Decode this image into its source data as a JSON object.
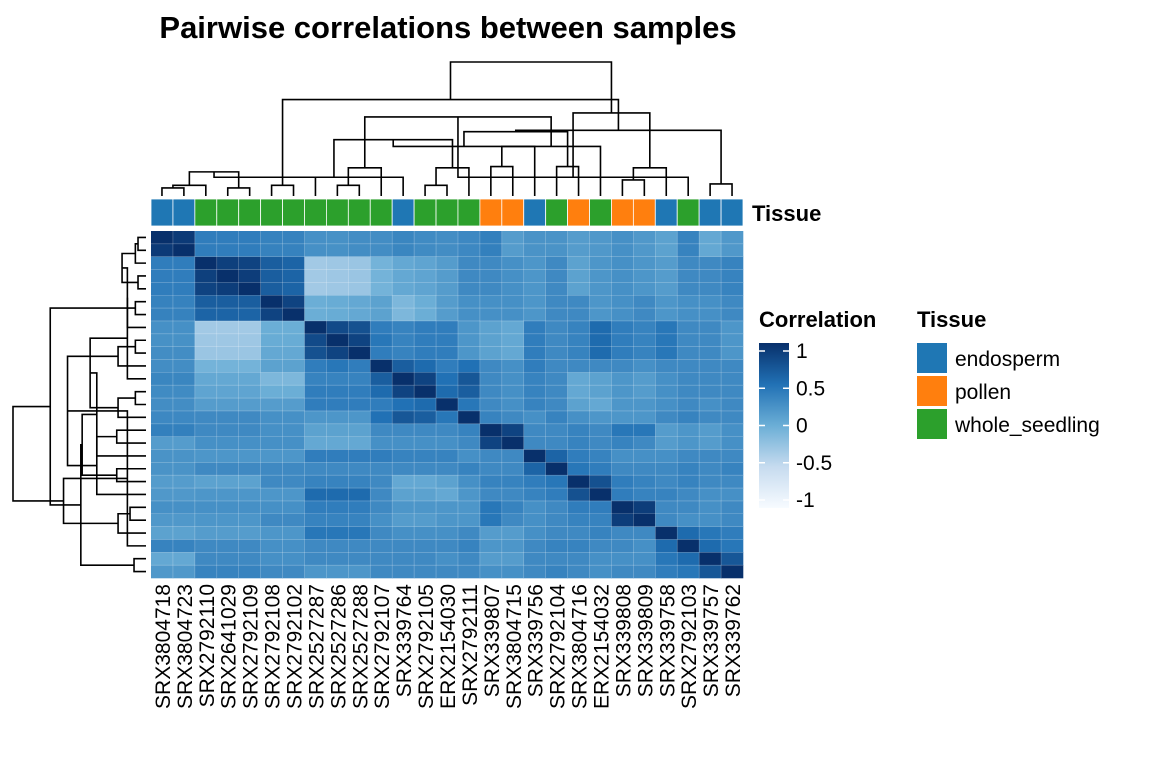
{
  "chart_data": {
    "type": "heatmap",
    "title": "Pairwise correlations between samples",
    "samples": [
      "SRX3804718",
      "SRX3804723",
      "SRX2792110",
      "SRX2641029",
      "SRX2792109",
      "SRX2792108",
      "SRX2792102",
      "SRX2527287",
      "SRX2527286",
      "SRX2527288",
      "SRX2792107",
      "SRX339764",
      "SRX2792105",
      "ERX2154030",
      "SRX2792111",
      "SRX339807",
      "SRX3804715",
      "SRX339756",
      "SRX2792104",
      "SRX3804716",
      "ERX2154032",
      "SRX339808",
      "SRX339809",
      "SRX339758",
      "SRX2792103",
      "SRX339757",
      "SRX339762"
    ],
    "tissue": [
      "endosperm",
      "endosperm",
      "whole_seedling",
      "whole_seedling",
      "whole_seedling",
      "whole_seedling",
      "whole_seedling",
      "whole_seedling",
      "whole_seedling",
      "whole_seedling",
      "whole_seedling",
      "endosperm",
      "whole_seedling",
      "whole_seedling",
      "whole_seedling",
      "pollen",
      "pollen",
      "endosperm",
      "whole_seedling",
      "pollen",
      "whole_seedling",
      "pollen",
      "pollen",
      "endosperm",
      "whole_seedling",
      "endosperm",
      "endosperm"
    ],
    "annotation_label": "Tissue",
    "color_scale": {
      "title": "Correlation",
      "ticks": [
        1,
        0.5,
        0,
        -0.5,
        -1
      ],
      "tick_labels": [
        "1",
        "0.5",
        "0",
        "-0.5",
        "-1"
      ],
      "range": [
        -1,
        1
      ],
      "colors": [
        "#f7fbff",
        "#c6dbef",
        "#6baed6",
        "#2171b5",
        "#08306b"
      ]
    },
    "tissue_legend": {
      "title": "Tissue",
      "entries": [
        {
          "label": "endosperm",
          "color": "#1f77b4"
        },
        {
          "label": "pollen",
          "color": "#ff7f0e"
        },
        {
          "label": "whole_seedling",
          "color": "#2ca02c"
        }
      ]
    },
    "dendrogram_merges": [
      [
        0,
        1,
        0.06
      ],
      [
        3,
        4,
        0.06
      ],
      [
        2,
        27,
        0.08
      ],
      [
        5,
        6,
        0.08
      ],
      [
        28,
        29,
        0.18
      ],
      [
        8,
        9,
        0.08
      ],
      [
        7,
        31,
        0.14
      ],
      [
        12,
        13,
        0.08
      ],
      [
        11,
        33,
        0.14
      ],
      [
        14,
        34,
        0.21
      ],
      [
        10,
        32,
        0.21
      ],
      [
        35,
        36,
        0.42
      ],
      [
        15,
        16,
        0.22
      ],
      [
        18,
        19,
        0.22
      ],
      [
        17,
        38,
        0.37
      ],
      [
        20,
        39,
        0.37
      ],
      [
        40,
        41,
        0.48
      ],
      [
        37,
        42,
        0.59
      ],
      [
        21,
        22,
        0.12
      ],
      [
        25,
        26,
        0.09
      ],
      [
        24,
        44,
        0.14
      ],
      [
        23,
        45,
        0.21
      ],
      [
        43,
        46,
        0.49
      ],
      [
        47,
        48,
        0.62
      ],
      [
        30,
        49,
        0.72
      ],
      [
        50,
        51,
        1.0
      ]
    ],
    "correlation_rows": [
      [
        1.0,
        0.92,
        0.4,
        0.4,
        0.4,
        0.36,
        0.36,
        0.25,
        0.24,
        0.27,
        0.27,
        0.33,
        0.29,
        0.27,
        0.31,
        0.38,
        0.15,
        0.22,
        0.22,
        0.15,
        0.18,
        0.25,
        0.18,
        0.1,
        0.35,
        0.05,
        0.18
      ],
      [
        0.92,
        1.0,
        0.4,
        0.4,
        0.4,
        0.36,
        0.36,
        0.25,
        0.24,
        0.27,
        0.27,
        0.33,
        0.29,
        0.27,
        0.31,
        0.38,
        0.15,
        0.22,
        0.22,
        0.15,
        0.18,
        0.25,
        0.18,
        0.1,
        0.35,
        0.05,
        0.18
      ],
      [
        0.4,
        0.4,
        1.0,
        0.88,
        0.85,
        0.65,
        0.6,
        -0.3,
        -0.28,
        -0.26,
        -0.05,
        0.05,
        0.08,
        0.15,
        0.3,
        0.3,
        0.25,
        0.2,
        0.3,
        0.1,
        0.2,
        0.25,
        0.2,
        0.15,
        0.3,
        0.3,
        0.35
      ],
      [
        0.4,
        0.4,
        0.88,
        1.0,
        0.9,
        0.65,
        0.6,
        -0.3,
        -0.28,
        -0.26,
        -0.05,
        0.05,
        0.08,
        0.15,
        0.3,
        0.3,
        0.25,
        0.2,
        0.3,
        0.1,
        0.2,
        0.25,
        0.2,
        0.15,
        0.3,
        0.3,
        0.35
      ],
      [
        0.4,
        0.4,
        0.85,
        0.9,
        1.0,
        0.65,
        0.6,
        -0.3,
        -0.28,
        -0.26,
        -0.05,
        0.05,
        0.08,
        0.15,
        0.3,
        0.3,
        0.25,
        0.2,
        0.3,
        0.1,
        0.2,
        0.25,
        0.2,
        0.15,
        0.3,
        0.3,
        0.35
      ],
      [
        0.36,
        0.36,
        0.65,
        0.65,
        0.65,
        1.0,
        0.85,
        0.0,
        0.02,
        0.05,
        0.1,
        -0.1,
        0.0,
        0.15,
        0.25,
        0.25,
        0.25,
        0.2,
        0.3,
        0.3,
        0.2,
        0.25,
        0.3,
        0.2,
        0.25,
        0.25,
        0.3
      ],
      [
        0.36,
        0.36,
        0.6,
        0.6,
        0.6,
        0.85,
        1.0,
        0.0,
        0.02,
        0.05,
        0.1,
        -0.1,
        0.0,
        0.15,
        0.25,
        0.25,
        0.25,
        0.2,
        0.3,
        0.3,
        0.2,
        0.25,
        0.3,
        0.2,
        0.25,
        0.25,
        0.3
      ],
      [
        0.25,
        0.25,
        -0.3,
        -0.3,
        -0.3,
        0.0,
        0.0,
        1.0,
        0.8,
        0.75,
        0.4,
        0.35,
        0.4,
        0.4,
        0.2,
        0.1,
        0.05,
        0.4,
        0.3,
        0.35,
        0.55,
        0.4,
        0.35,
        0.45,
        0.3,
        0.3,
        0.2
      ],
      [
        0.24,
        0.24,
        -0.28,
        -0.28,
        -0.28,
        0.02,
        0.02,
        0.8,
        1.0,
        0.85,
        0.45,
        0.35,
        0.4,
        0.4,
        0.2,
        0.1,
        0.05,
        0.4,
        0.3,
        0.35,
        0.55,
        0.4,
        0.35,
        0.45,
        0.3,
        0.3,
        0.2
      ],
      [
        0.27,
        0.27,
        -0.26,
        -0.26,
        -0.26,
        0.05,
        0.05,
        0.75,
        0.85,
        1.0,
        0.4,
        0.35,
        0.4,
        0.4,
        0.2,
        0.1,
        0.05,
        0.4,
        0.3,
        0.35,
        0.55,
        0.4,
        0.35,
        0.45,
        0.3,
        0.3,
        0.2
      ],
      [
        0.27,
        0.27,
        -0.05,
        -0.05,
        -0.05,
        0.1,
        0.1,
        0.4,
        0.45,
        0.4,
        1.0,
        0.65,
        0.55,
        0.4,
        0.5,
        0.3,
        0.25,
        0.4,
        0.3,
        0.3,
        0.3,
        0.3,
        0.25,
        0.3,
        0.3,
        0.3,
        0.3
      ],
      [
        0.33,
        0.33,
        0.05,
        0.05,
        0.05,
        -0.1,
        -0.1,
        0.35,
        0.35,
        0.35,
        0.65,
        1.0,
        0.85,
        0.5,
        0.7,
        0.3,
        0.25,
        0.35,
        0.3,
        0.05,
        0.1,
        0.2,
        0.15,
        0.25,
        0.3,
        0.3,
        0.3
      ],
      [
        0.29,
        0.29,
        0.08,
        0.08,
        0.08,
        0.0,
        0.0,
        0.4,
        0.4,
        0.4,
        0.55,
        0.85,
        1.0,
        0.55,
        0.65,
        0.3,
        0.25,
        0.35,
        0.3,
        0.05,
        0.1,
        0.2,
        0.15,
        0.25,
        0.3,
        0.3,
        0.3
      ],
      [
        0.27,
        0.27,
        0.15,
        0.15,
        0.15,
        0.15,
        0.15,
        0.4,
        0.4,
        0.4,
        0.4,
        0.5,
        0.55,
        1.0,
        0.45,
        0.3,
        0.25,
        0.35,
        0.3,
        0.1,
        0.05,
        0.2,
        0.2,
        0.25,
        0.3,
        0.25,
        0.3
      ],
      [
        0.31,
        0.31,
        0.3,
        0.3,
        0.3,
        0.25,
        0.25,
        0.2,
        0.2,
        0.2,
        0.5,
        0.7,
        0.65,
        0.45,
        1.0,
        0.35,
        0.3,
        0.25,
        0.35,
        0.25,
        0.2,
        0.2,
        0.2,
        0.3,
        0.35,
        0.3,
        0.3
      ],
      [
        0.38,
        0.38,
        0.3,
        0.3,
        0.3,
        0.25,
        0.25,
        0.1,
        0.1,
        0.1,
        0.3,
        0.3,
        0.3,
        0.3,
        0.35,
        1.0,
        0.85,
        0.3,
        0.3,
        0.35,
        0.3,
        0.45,
        0.45,
        0.15,
        0.2,
        0.15,
        0.25
      ],
      [
        0.15,
        0.15,
        0.25,
        0.25,
        0.25,
        0.25,
        0.25,
        0.05,
        0.05,
        0.05,
        0.25,
        0.25,
        0.25,
        0.25,
        0.3,
        0.85,
        1.0,
        0.3,
        0.3,
        0.35,
        0.3,
        0.35,
        0.3,
        0.15,
        0.2,
        0.15,
        0.25
      ],
      [
        0.22,
        0.22,
        0.2,
        0.2,
        0.2,
        0.2,
        0.2,
        0.4,
        0.4,
        0.4,
        0.4,
        0.35,
        0.35,
        0.35,
        0.25,
        0.3,
        0.3,
        1.0,
        0.6,
        0.4,
        0.35,
        0.25,
        0.25,
        0.25,
        0.3,
        0.3,
        0.3
      ],
      [
        0.22,
        0.22,
        0.3,
        0.3,
        0.3,
        0.3,
        0.3,
        0.3,
        0.3,
        0.3,
        0.3,
        0.3,
        0.3,
        0.3,
        0.35,
        0.3,
        0.3,
        0.6,
        1.0,
        0.45,
        0.4,
        0.3,
        0.3,
        0.3,
        0.35,
        0.3,
        0.35
      ],
      [
        0.15,
        0.15,
        0.1,
        0.1,
        0.1,
        0.3,
        0.3,
        0.35,
        0.35,
        0.35,
        0.3,
        0.05,
        0.05,
        0.1,
        0.25,
        0.35,
        0.35,
        0.4,
        0.45,
        1.0,
        0.75,
        0.4,
        0.35,
        0.3,
        0.35,
        0.3,
        0.3
      ],
      [
        0.18,
        0.18,
        0.2,
        0.2,
        0.2,
        0.2,
        0.2,
        0.55,
        0.55,
        0.55,
        0.3,
        0.1,
        0.1,
        0.05,
        0.2,
        0.3,
        0.3,
        0.35,
        0.4,
        0.75,
        1.0,
        0.4,
        0.35,
        0.35,
        0.3,
        0.25,
        0.25
      ],
      [
        0.25,
        0.25,
        0.25,
        0.25,
        0.25,
        0.25,
        0.25,
        0.4,
        0.4,
        0.4,
        0.3,
        0.2,
        0.2,
        0.2,
        0.2,
        0.45,
        0.35,
        0.25,
        0.3,
        0.4,
        0.4,
        1.0,
        0.9,
        0.3,
        0.3,
        0.25,
        0.3
      ],
      [
        0.18,
        0.18,
        0.2,
        0.2,
        0.2,
        0.3,
        0.3,
        0.35,
        0.35,
        0.35,
        0.25,
        0.15,
        0.15,
        0.2,
        0.2,
        0.45,
        0.3,
        0.25,
        0.3,
        0.35,
        0.35,
        0.9,
        1.0,
        0.3,
        0.25,
        0.25,
        0.3
      ],
      [
        0.1,
        0.1,
        0.15,
        0.15,
        0.15,
        0.2,
        0.2,
        0.45,
        0.45,
        0.45,
        0.3,
        0.25,
        0.25,
        0.25,
        0.3,
        0.15,
        0.15,
        0.25,
        0.3,
        0.3,
        0.35,
        0.3,
        0.3,
        1.0,
        0.55,
        0.45,
        0.4
      ],
      [
        0.35,
        0.35,
        0.3,
        0.3,
        0.3,
        0.25,
        0.25,
        0.3,
        0.3,
        0.3,
        0.3,
        0.3,
        0.3,
        0.3,
        0.35,
        0.2,
        0.2,
        0.3,
        0.35,
        0.35,
        0.3,
        0.3,
        0.25,
        0.55,
        1.0,
        0.55,
        0.45
      ],
      [
        0.05,
        0.05,
        0.3,
        0.3,
        0.3,
        0.25,
        0.25,
        0.3,
        0.3,
        0.3,
        0.3,
        0.3,
        0.3,
        0.25,
        0.3,
        0.15,
        0.15,
        0.3,
        0.3,
        0.3,
        0.25,
        0.25,
        0.25,
        0.45,
        0.55,
        1.0,
        0.7
      ],
      [
        0.18,
        0.18,
        0.35,
        0.35,
        0.35,
        0.3,
        0.3,
        0.2,
        0.2,
        0.2,
        0.3,
        0.3,
        0.3,
        0.3,
        0.3,
        0.25,
        0.25,
        0.3,
        0.35,
        0.3,
        0.25,
        0.3,
        0.3,
        0.4,
        0.45,
        0.7,
        1.0
      ]
    ]
  }
}
